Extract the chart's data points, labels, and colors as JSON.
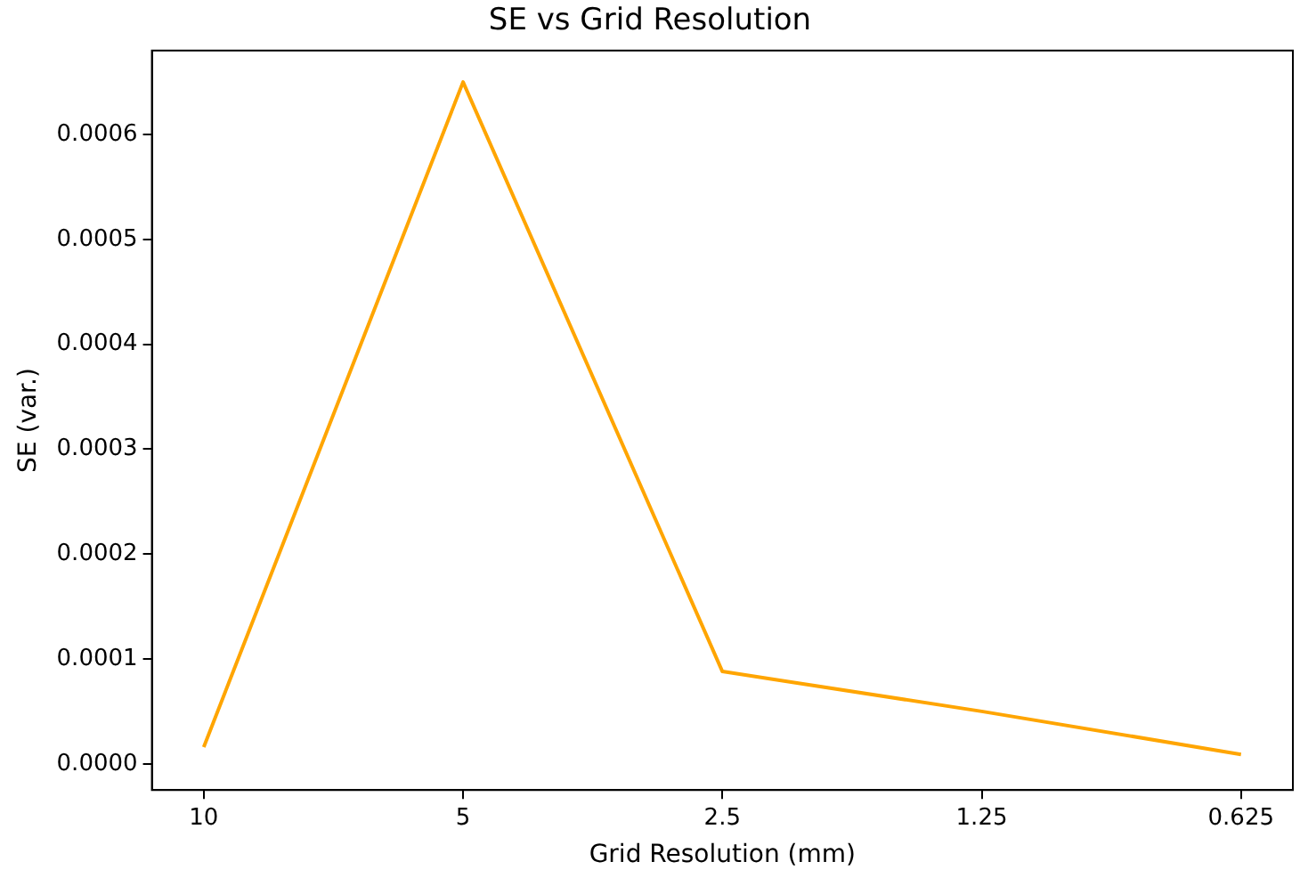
{
  "chart_data": {
    "type": "line",
    "title": "SE vs Grid Resolution",
    "xlabel": "Grid Resolution (mm)",
    "ylabel": "SE (var.)",
    "categories": [
      "10",
      "5",
      "2.5",
      "1.25",
      "0.625"
    ],
    "series": [
      {
        "color": "#ffa500",
        "values": [
          1.6e-05,
          0.00065,
          8.8e-05,
          5e-05,
          9e-06
        ]
      }
    ],
    "ylim": [
      -2.5e-05,
      0.00068
    ],
    "yticks": [
      {
        "value": 0,
        "label": "0.0000"
      },
      {
        "value": 0.0001,
        "label": "0.0001"
      },
      {
        "value": 0.0002,
        "label": "0.0002"
      },
      {
        "value": 0.0003,
        "label": "0.0003"
      },
      {
        "value": 0.0004,
        "label": "0.0004"
      },
      {
        "value": 0.0005,
        "label": "0.0005"
      },
      {
        "value": 0.0006,
        "label": "0.0006"
      }
    ],
    "grid": false,
    "legend": false,
    "marker": "none",
    "line_style": "solid"
  }
}
